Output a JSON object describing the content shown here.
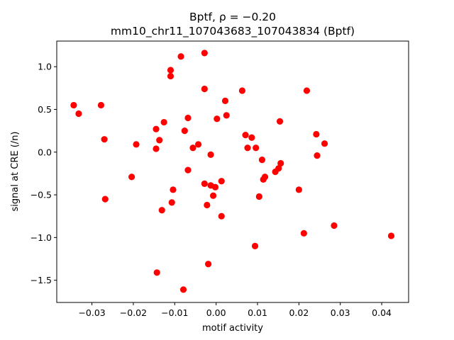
{
  "chart_data": {
    "type": "scatter",
    "title_line1": "Bptf, ρ = −0.20",
    "title_line2": "mm10_chr11_107043683_107043834 (Bptf)",
    "xlabel": "motif activity",
    "ylabel": "signal at CRE (/n)",
    "xlim": [
      -0.0385,
      0.0465
    ],
    "ylim": [
      -1.76,
      1.3
    ],
    "xticks": [
      -0.03,
      -0.02,
      -0.01,
      0.0,
      0.01,
      0.02,
      0.03,
      0.04
    ],
    "xtick_labels": [
      "−0.03",
      "−0.02",
      "−0.01",
      "0.00",
      "0.01",
      "0.02",
      "0.03",
      "0.04"
    ],
    "yticks": [
      -1.5,
      -1.0,
      -0.5,
      0.0,
      0.5,
      1.0
    ],
    "ytick_labels": [
      "−1.5",
      "−1.0",
      "−0.5",
      "0.0",
      "0.5",
      "1.0"
    ],
    "grid": false,
    "marker_color": "#ff0000",
    "points": [
      {
        "x": -0.0344,
        "y": 0.55
      },
      {
        "x": -0.0332,
        "y": 0.45
      },
      {
        "x": -0.0278,
        "y": 0.55
      },
      {
        "x": -0.027,
        "y": 0.15
      },
      {
        "x": -0.0268,
        "y": -0.55
      },
      {
        "x": -0.0204,
        "y": -0.29
      },
      {
        "x": -0.0193,
        "y": 0.09
      },
      {
        "x": -0.0145,
        "y": 0.27
      },
      {
        "x": -0.0145,
        "y": 0.04
      },
      {
        "x": -0.0137,
        "y": 0.14
      },
      {
        "x": -0.0131,
        "y": -0.68
      },
      {
        "x": -0.0126,
        "y": 0.35
      },
      {
        "x": -0.0143,
        "y": -1.41
      },
      {
        "x": -0.011,
        "y": 0.96
      },
      {
        "x": -0.011,
        "y": 0.89
      },
      {
        "x": -0.0107,
        "y": -0.59
      },
      {
        "x": -0.0104,
        "y": -0.44
      },
      {
        "x": -0.0085,
        "y": 1.12
      },
      {
        "x": -0.0076,
        "y": 0.25
      },
      {
        "x": -0.0068,
        "y": 0.4
      },
      {
        "x": -0.0068,
        "y": -0.21
      },
      {
        "x": -0.0056,
        "y": 0.05
      },
      {
        "x": -0.0043,
        "y": 0.09
      },
      {
        "x": -0.0028,
        "y": 1.16
      },
      {
        "x": -0.0028,
        "y": 0.74
      },
      {
        "x": -0.0028,
        "y": -0.37
      },
      {
        "x": -0.0022,
        "y": -0.62
      },
      {
        "x": -0.0019,
        "y": -1.31
      },
      {
        "x": -0.0013,
        "y": -0.03
      },
      {
        "x": -0.0013,
        "y": -0.39
      },
      {
        "x": -0.0007,
        "y": -0.51
      },
      {
        "x": -0.0002,
        "y": -0.41
      },
      {
        "x": 0.0002,
        "y": 0.39
      },
      {
        "x": 0.0013,
        "y": -0.34
      },
      {
        "x": 0.0013,
        "y": -0.75
      },
      {
        "x": 0.0022,
        "y": 0.6
      },
      {
        "x": 0.0025,
        "y": 0.43
      },
      {
        "x": -0.0079,
        "y": -1.61
      },
      {
        "x": 0.0063,
        "y": 0.72
      },
      {
        "x": 0.0071,
        "y": 0.2
      },
      {
        "x": 0.0076,
        "y": 0.05
      },
      {
        "x": 0.0086,
        "y": 0.17
      },
      {
        "x": 0.0094,
        "y": -1.1
      },
      {
        "x": 0.0096,
        "y": 0.05
      },
      {
        "x": 0.0104,
        "y": -0.52
      },
      {
        "x": 0.0111,
        "y": -0.09
      },
      {
        "x": 0.0114,
        "y": -0.32
      },
      {
        "x": 0.0118,
        "y": -0.29
      },
      {
        "x": 0.0143,
        "y": -0.23
      },
      {
        "x": 0.0151,
        "y": -0.19
      },
      {
        "x": 0.0154,
        "y": 0.36
      },
      {
        "x": 0.0156,
        "y": -0.13
      },
      {
        "x": 0.02,
        "y": -0.44
      },
      {
        "x": 0.0212,
        "y": -0.95
      },
      {
        "x": 0.0219,
        "y": 0.72
      },
      {
        "x": 0.0242,
        "y": 0.21
      },
      {
        "x": 0.0244,
        "y": -0.04
      },
      {
        "x": 0.0262,
        "y": 0.1
      },
      {
        "x": 0.0285,
        "y": -0.86
      },
      {
        "x": 0.0423,
        "y": -0.98
      }
    ]
  }
}
